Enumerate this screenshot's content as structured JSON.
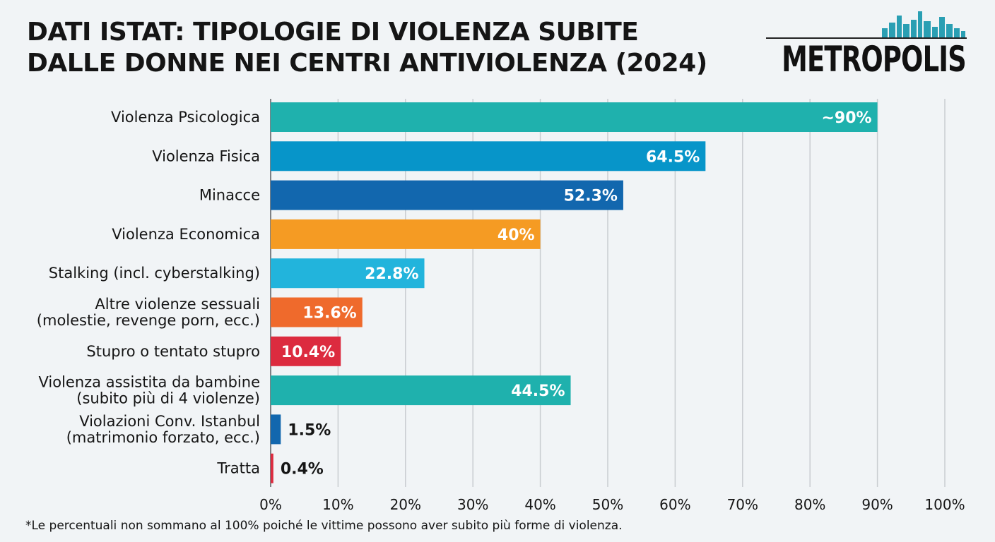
{
  "title_lines": [
    "DATI ISTAT: TIPOLOGIE DI VIOLENZA SUBITE",
    "DALLE DONNE NEI CENTRI ANTIVIOLENZA (2024)"
  ],
  "logo": {
    "text": "METROPOLIS",
    "skyline_icon": "city-skyline-icon",
    "skyline_color": "#2a9fb3"
  },
  "footnote": "*Le percentuali non sommano al 100% poiché le vittime possono aver subito più forme di violenza.",
  "chart_data": {
    "type": "bar",
    "orientation": "horizontal",
    "title": "DATI ISTAT: TIPOLOGIE DI VIOLENZA SUBITE DALLE DONNE NEI CENTRI ANTIVIOLENZA (2024)",
    "xlim": [
      0,
      100
    ],
    "xticks": [
      "0%",
      "10%",
      "20%",
      "30%",
      "40%",
      "50%",
      "60%",
      "70%",
      "80%",
      "90%",
      "100%"
    ],
    "grid": true,
    "categories": [
      {
        "label": [
          "Violenza Psicologica"
        ],
        "value": 90,
        "display": "~90%",
        "color": "#1fb1ad"
      },
      {
        "label": [
          "Violenza Fisica"
        ],
        "value": 64.5,
        "display": "64.5%",
        "color": "#0795c9"
      },
      {
        "label": [
          "Minacce"
        ],
        "value": 52.3,
        "display": "52.3%",
        "color": "#1267ae"
      },
      {
        "label": [
          "Violenza Economica"
        ],
        "value": 40,
        "display": "40%",
        "color": "#f59b23"
      },
      {
        "label": [
          "Stalking (incl. cyberstalking)"
        ],
        "value": 22.8,
        "display": "22.8%",
        "color": "#22b4dc"
      },
      {
        "label": [
          "Altre violenze sessuali",
          "(molestie, revenge porn, ecc.)"
        ],
        "value": 13.6,
        "display": "13.6%",
        "color": "#ef6a2c"
      },
      {
        "label": [
          "Stupro o tentato stupro"
        ],
        "value": 10.4,
        "display": "10.4%",
        "color": "#dc2b3f"
      },
      {
        "label": [
          "Violenza assistita da bambine",
          "(subito più di 4 violenze)"
        ],
        "value": 44.5,
        "display": "44.5%",
        "color": "#1fb1ad"
      },
      {
        "label": [
          "Violazioni Conv. Istanbul",
          "(matrimonio forzato, ecc.)"
        ],
        "value": 1.5,
        "display": "1.5%",
        "color": "#1267ae"
      },
      {
        "label": [
          "Tratta"
        ],
        "value": 0.4,
        "display": "0.4%",
        "color": "#dc2b3f"
      }
    ]
  }
}
